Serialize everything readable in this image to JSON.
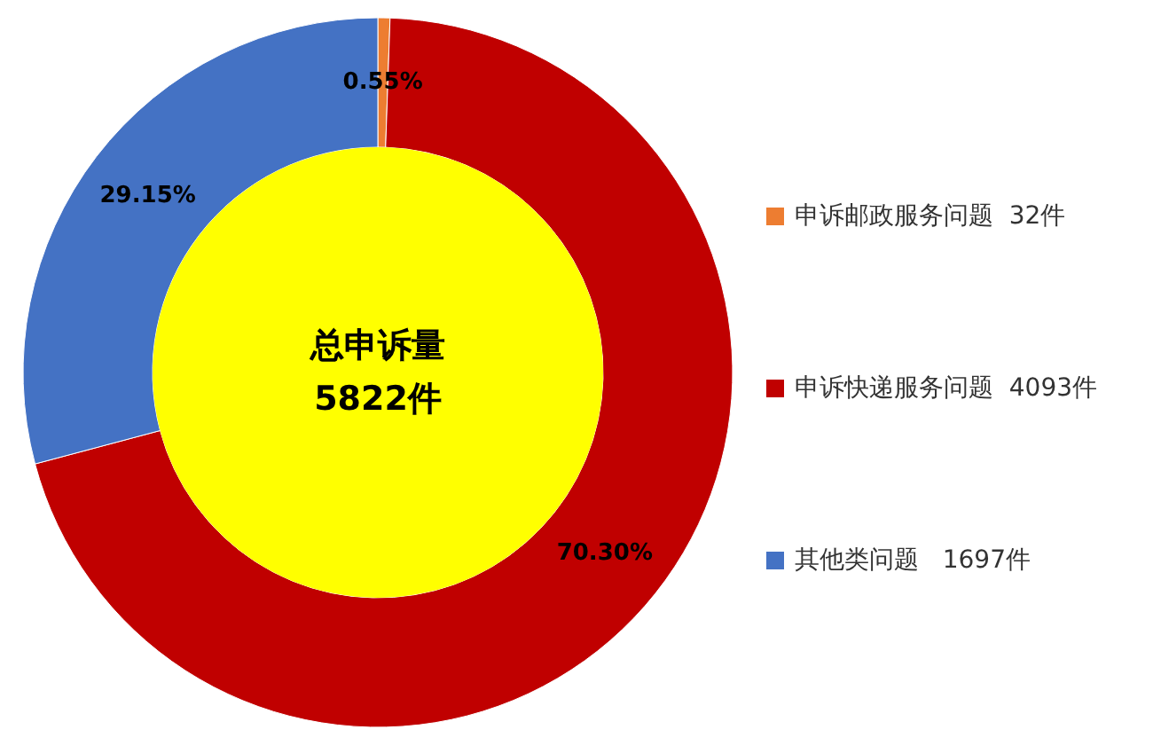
{
  "chart_data": {
    "type": "donut",
    "categories": [
      "申诉邮政服务问题  32件",
      "申诉快递服务问题  4093件",
      "其他类问题   1697件"
    ],
    "values": [
      0.55,
      70.3,
      29.15
    ],
    "colors": [
      "#ed7d31",
      "#c00000",
      "#4472c4"
    ],
    "value_labels": [
      "0.55%",
      "70.30%",
      "29.15%"
    ],
    "annotations": [
      "总申诉量",
      "5822件"
    ],
    "legend": "right"
  }
}
